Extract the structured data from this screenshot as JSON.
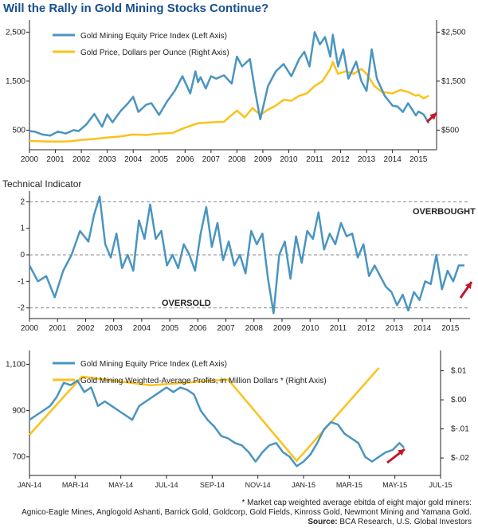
{
  "title": "Will the Rally in Gold Mining Stocks Continue?",
  "colors": {
    "blue": "#4a95c0",
    "yellow": "#fbc21a",
    "arrow": "#c2182b",
    "grid": "#888888"
  },
  "chart_data": [
    {
      "type": "line",
      "title": "Will the Rally in Gold Mining Stocks Continue?",
      "legend_placement": "top-left",
      "x_ticks": [
        "2000",
        "2001",
        "2002",
        "2003",
        "2004",
        "2005",
        "2006",
        "2007",
        "2008",
        "2009",
        "2010",
        "2011",
        "2012",
        "2013",
        "2014",
        "2015"
      ],
      "y_left_ticks": [
        "500",
        "1,500",
        "2,500"
      ],
      "y_right_ticks": [
        "$500",
        "$1,500",
        "$2,500"
      ],
      "ylim_left": [
        100,
        2750
      ],
      "ylim_right": [
        100,
        2750
      ],
      "xlim": [
        2000,
        2015.7
      ],
      "series": [
        {
          "name": "Gold Mining Equity Price Index (Left Axis)",
          "axis": "left",
          "x": [
            2000,
            2000.2,
            2000.5,
            2000.8,
            2001.1,
            2001.4,
            2001.7,
            2001.9,
            2002.2,
            2002.5,
            2002.8,
            2003,
            2003.2,
            2003.5,
            2003.8,
            2004,
            2004.2,
            2004.5,
            2004.7,
            2005,
            2005.3,
            2005.6,
            2005.9,
            2006.2,
            2006.4,
            2006.5,
            2006.6,
            2006.8,
            2007,
            2007.2,
            2007.5,
            2007.8,
            2008,
            2008.2,
            2008.5,
            2008.7,
            2008.9,
            2009.2,
            2009.5,
            2009.8,
            2010.1,
            2010.4,
            2010.6,
            2010.8,
            2011,
            2011.2,
            2011.4,
            2011.6,
            2011.7,
            2011.9,
            2012.1,
            2012.3,
            2012.6,
            2012.8,
            2013,
            2013.2,
            2013.4,
            2013.7,
            2014,
            2014.2,
            2014.4,
            2014.6,
            2014.9,
            2015,
            2015.2,
            2015.4
          ],
          "y": [
            480,
            470,
            410,
            390,
            470,
            430,
            500,
            480,
            620,
            830,
            570,
            820,
            660,
            880,
            1050,
            1180,
            870,
            1020,
            1050,
            810,
            1080,
            1300,
            1600,
            1250,
            1700,
            1480,
            1580,
            1350,
            1600,
            1550,
            1620,
            1450,
            2000,
            1800,
            1950,
            1300,
            720,
            1400,
            1700,
            1850,
            1600,
            1950,
            2100,
            1800,
            2500,
            2250,
            2400,
            2000,
            2450,
            1800,
            2150,
            1550,
            1900,
            1500,
            1300,
            2150,
            1550,
            1200,
            1000,
            980,
            870,
            1050,
            800,
            880,
            820,
            640
          ]
        },
        {
          "name": "Gold Price, Dollars per Ounce (Right Axis)",
          "axis": "right",
          "x": [
            2000,
            2000.5,
            2001,
            2001.5,
            2002,
            2002.5,
            2003,
            2003.5,
            2004,
            2004.5,
            2005,
            2005.5,
            2006,
            2006.5,
            2007,
            2007.5,
            2008,
            2008.3,
            2008.6,
            2008.9,
            2009.2,
            2009.5,
            2009.8,
            2010.1,
            2010.4,
            2010.7,
            2011,
            2011.3,
            2011.6,
            2011.7,
            2011.9,
            2012.2,
            2012.5,
            2012.8,
            2013,
            2013.3,
            2013.6,
            2014,
            2014.3,
            2014.6,
            2014.9,
            2015,
            2015.2,
            2015.4
          ],
          "y": [
            280,
            270,
            265,
            270,
            300,
            320,
            350,
            370,
            410,
            400,
            430,
            440,
            550,
            640,
            660,
            670,
            900,
            760,
            950,
            810,
            920,
            1000,
            1120,
            1100,
            1200,
            1250,
            1400,
            1500,
            1750,
            1890,
            1650,
            1700,
            1650,
            1750,
            1650,
            1400,
            1280,
            1250,
            1320,
            1280,
            1200,
            1220,
            1150,
            1200
          ]
        }
      ]
    },
    {
      "type": "line",
      "title": "Technical Indicator",
      "x_ticks": [
        "2000",
        "2001",
        "2002",
        "2003",
        "2004",
        "2005",
        "2006",
        "2007",
        "2008",
        "2009",
        "2010",
        "2011",
        "2012",
        "2013",
        "2014",
        "2015"
      ],
      "y_ticks": [
        "2",
        "1",
        "0",
        "-1",
        "-2"
      ],
      "ylim": [
        -2.4,
        2.4
      ],
      "xlim": [
        2000,
        2015.7
      ],
      "annotations": [
        "OVERBOUGHT",
        "OVERSOLD"
      ],
      "series": [
        {
          "name": "",
          "x": [
            2000,
            2000.3,
            2000.6,
            2000.9,
            2001.2,
            2001.5,
            2001.8,
            2002.1,
            2002.3,
            2002.5,
            2002.7,
            2002.9,
            2003.1,
            2003.3,
            2003.5,
            2003.7,
            2003.9,
            2004.1,
            2004.3,
            2004.5,
            2004.7,
            2004.9,
            2005.1,
            2005.3,
            2005.5,
            2005.7,
            2005.9,
            2006.1,
            2006.3,
            2006.5,
            2006.7,
            2006.9,
            2007.1,
            2007.3,
            2007.5,
            2007.7,
            2007.9,
            2008.1,
            2008.3,
            2008.5,
            2008.7,
            2008.9,
            2009.1,
            2009.3,
            2009.5,
            2009.7,
            2009.9,
            2010.1,
            2010.3,
            2010.5,
            2010.7,
            2010.9,
            2011.1,
            2011.3,
            2011.5,
            2011.7,
            2011.9,
            2012.1,
            2012.3,
            2012.5,
            2012.7,
            2012.9,
            2013.1,
            2013.3,
            2013.5,
            2013.7,
            2013.9,
            2014.1,
            2014.3,
            2014.5,
            2014.7,
            2014.9,
            2015.1,
            2015.3,
            2015.5
          ],
          "y": [
            -0.4,
            -1.0,
            -0.8,
            -1.6,
            -0.6,
            0.0,
            0.9,
            0.5,
            1.5,
            2.2,
            0.4,
            -0.1,
            0.8,
            -0.5,
            0.0,
            -0.6,
            1.3,
            0.6,
            1.9,
            0.6,
            0.9,
            -0.4,
            0.0,
            -0.5,
            0.4,
            0.0,
            -0.6,
            0.8,
            1.8,
            0.3,
            1.2,
            -0.2,
            0.5,
            -0.4,
            0.0,
            -0.7,
            0.9,
            0.4,
            0.8,
            -0.9,
            -2.2,
            0.0,
            0.5,
            -0.9,
            0.7,
            -0.3,
            0.9,
            0.6,
            1.6,
            0.2,
            0.8,
            0.4,
            1.2,
            0.7,
            0.8,
            -0.1,
            0.4,
            -0.8,
            -0.4,
            -0.8,
            -1.2,
            -1.4,
            -1.9,
            -1.5,
            -2.1,
            -1.4,
            -1.7,
            -1.0,
            -1.1,
            0.0,
            -1.3,
            -0.6,
            -1.0,
            -0.4,
            -0.4
          ]
        }
      ]
    },
    {
      "type": "line",
      "legend_placement": "top-left",
      "x_ticks": [
        "JAN-14",
        "MAR-14",
        "MAY-14",
        "JUL-14",
        "SEP-14",
        "NOV-14",
        "JAN-15",
        "MAR-15",
        "MAY-15",
        "JUL-15"
      ],
      "y_left_ticks": [
        "700",
        "900",
        "1,100"
      ],
      "y_right_ticks": [
        "$.01",
        "$.00",
        "$-.01",
        "$-.02"
      ],
      "ylim_left": [
        620,
        1160
      ],
      "ylim_right": [
        -0.026,
        0.017
      ],
      "xlim": [
        0,
        18
      ],
      "series": [
        {
          "name": "Gold Mining Equity Price Index (Left Axis)",
          "axis": "left",
          "x": [
            0,
            0.3,
            0.6,
            0.9,
            1.2,
            1.5,
            1.8,
            2.1,
            2.4,
            2.7,
            3.0,
            3.3,
            3.6,
            3.9,
            4.2,
            4.5,
            4.8,
            5.1,
            5.4,
            5.7,
            6.0,
            6.3,
            6.6,
            6.9,
            7.2,
            7.5,
            7.8,
            8.1,
            8.4,
            8.7,
            9.0,
            9.3,
            9.6,
            9.9,
            10.2,
            10.5,
            10.8,
            11.1,
            11.4,
            11.7,
            12.0,
            12.3,
            12.6,
            12.9,
            13.2,
            13.5,
            13.8,
            14.1,
            14.4,
            14.7,
            15.0,
            15.3,
            15.6,
            15.9,
            16.2,
            16.4
          ],
          "y": [
            860,
            880,
            900,
            920,
            960,
            1020,
            1010,
            1030,
            980,
            1000,
            920,
            940,
            920,
            900,
            880,
            860,
            920,
            940,
            960,
            980,
            1000,
            980,
            1000,
            990,
            970,
            900,
            860,
            830,
            790,
            780,
            760,
            750,
            720,
            680,
            720,
            750,
            760,
            720,
            700,
            660,
            680,
            710,
            760,
            820,
            850,
            840,
            800,
            780,
            760,
            700,
            680,
            700,
            720,
            730,
            760,
            740
          ]
        },
        {
          "name": "Gold Mining Weighted-Average Profits, in Million Dollars * (Right Axis)",
          "axis": "right",
          "x": [
            0,
            2.3,
            5.3,
            8.7,
            11.7,
            15.3
          ],
          "y": [
            -0.012,
            0.008,
            0.005,
            0.007,
            -0.021,
            0.011
          ]
        }
      ]
    }
  ],
  "panel2_label": "Technical Indicator",
  "overbought_label": "OVERBOUGHT",
  "oversold_label": "OVERSOLD",
  "footnote_line1": "* Market cap weighted average ebitda of eight major gold miners:",
  "footnote_line2": "Agnico-Eagle Mines, Anglogold Ashanti, Barrick Gold, Goldcorp, Gold Fields, Kinross Gold, Newmont Mining and Yamana Gold.",
  "source_label": "Source:",
  "source_text": " BCA Research, U.S. Global Investors"
}
